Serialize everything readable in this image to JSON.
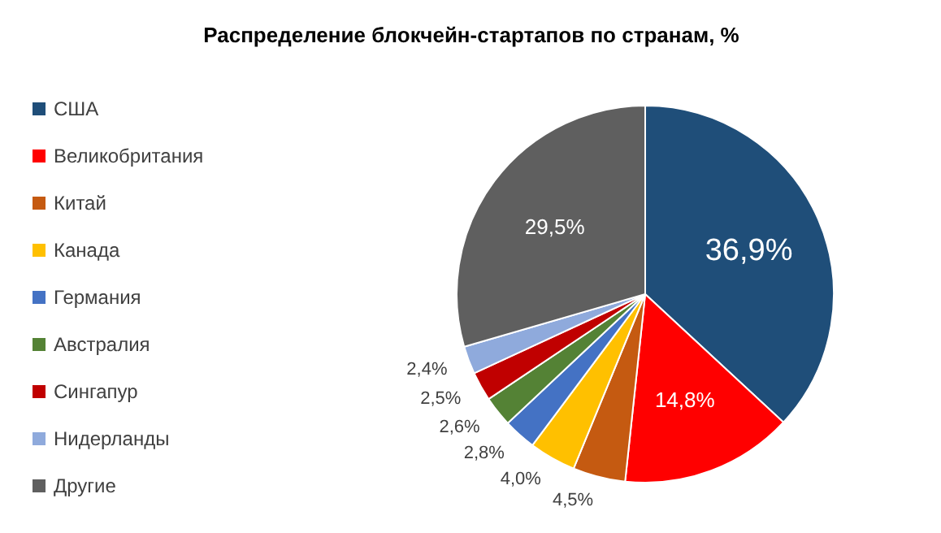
{
  "chart_data": {
    "type": "pie",
    "title": "Распределение блокчейн-стартапов по странам, %",
    "categories": [
      "США",
      "Великобритания",
      "Китай",
      "Канада",
      "Германия",
      "Австралия",
      "Сингапур",
      "Нидерланды",
      "Другие"
    ],
    "values": [
      36.9,
      14.8,
      4.5,
      4.0,
      2.8,
      2.6,
      2.5,
      2.4,
      29.5
    ],
    "value_labels": [
      "36,9%",
      "14,8%",
      "4,5%",
      "4,0%",
      "2,8%",
      "2,6%",
      "2,5%",
      "2,4%",
      "29,5%"
    ],
    "colors": [
      "#1f4e79",
      "#ff0000",
      "#c55a11",
      "#ffc000",
      "#4472c4",
      "#548235",
      "#c00000",
      "#8faadc",
      "#5f5f5f"
    ],
    "legend": "left"
  }
}
